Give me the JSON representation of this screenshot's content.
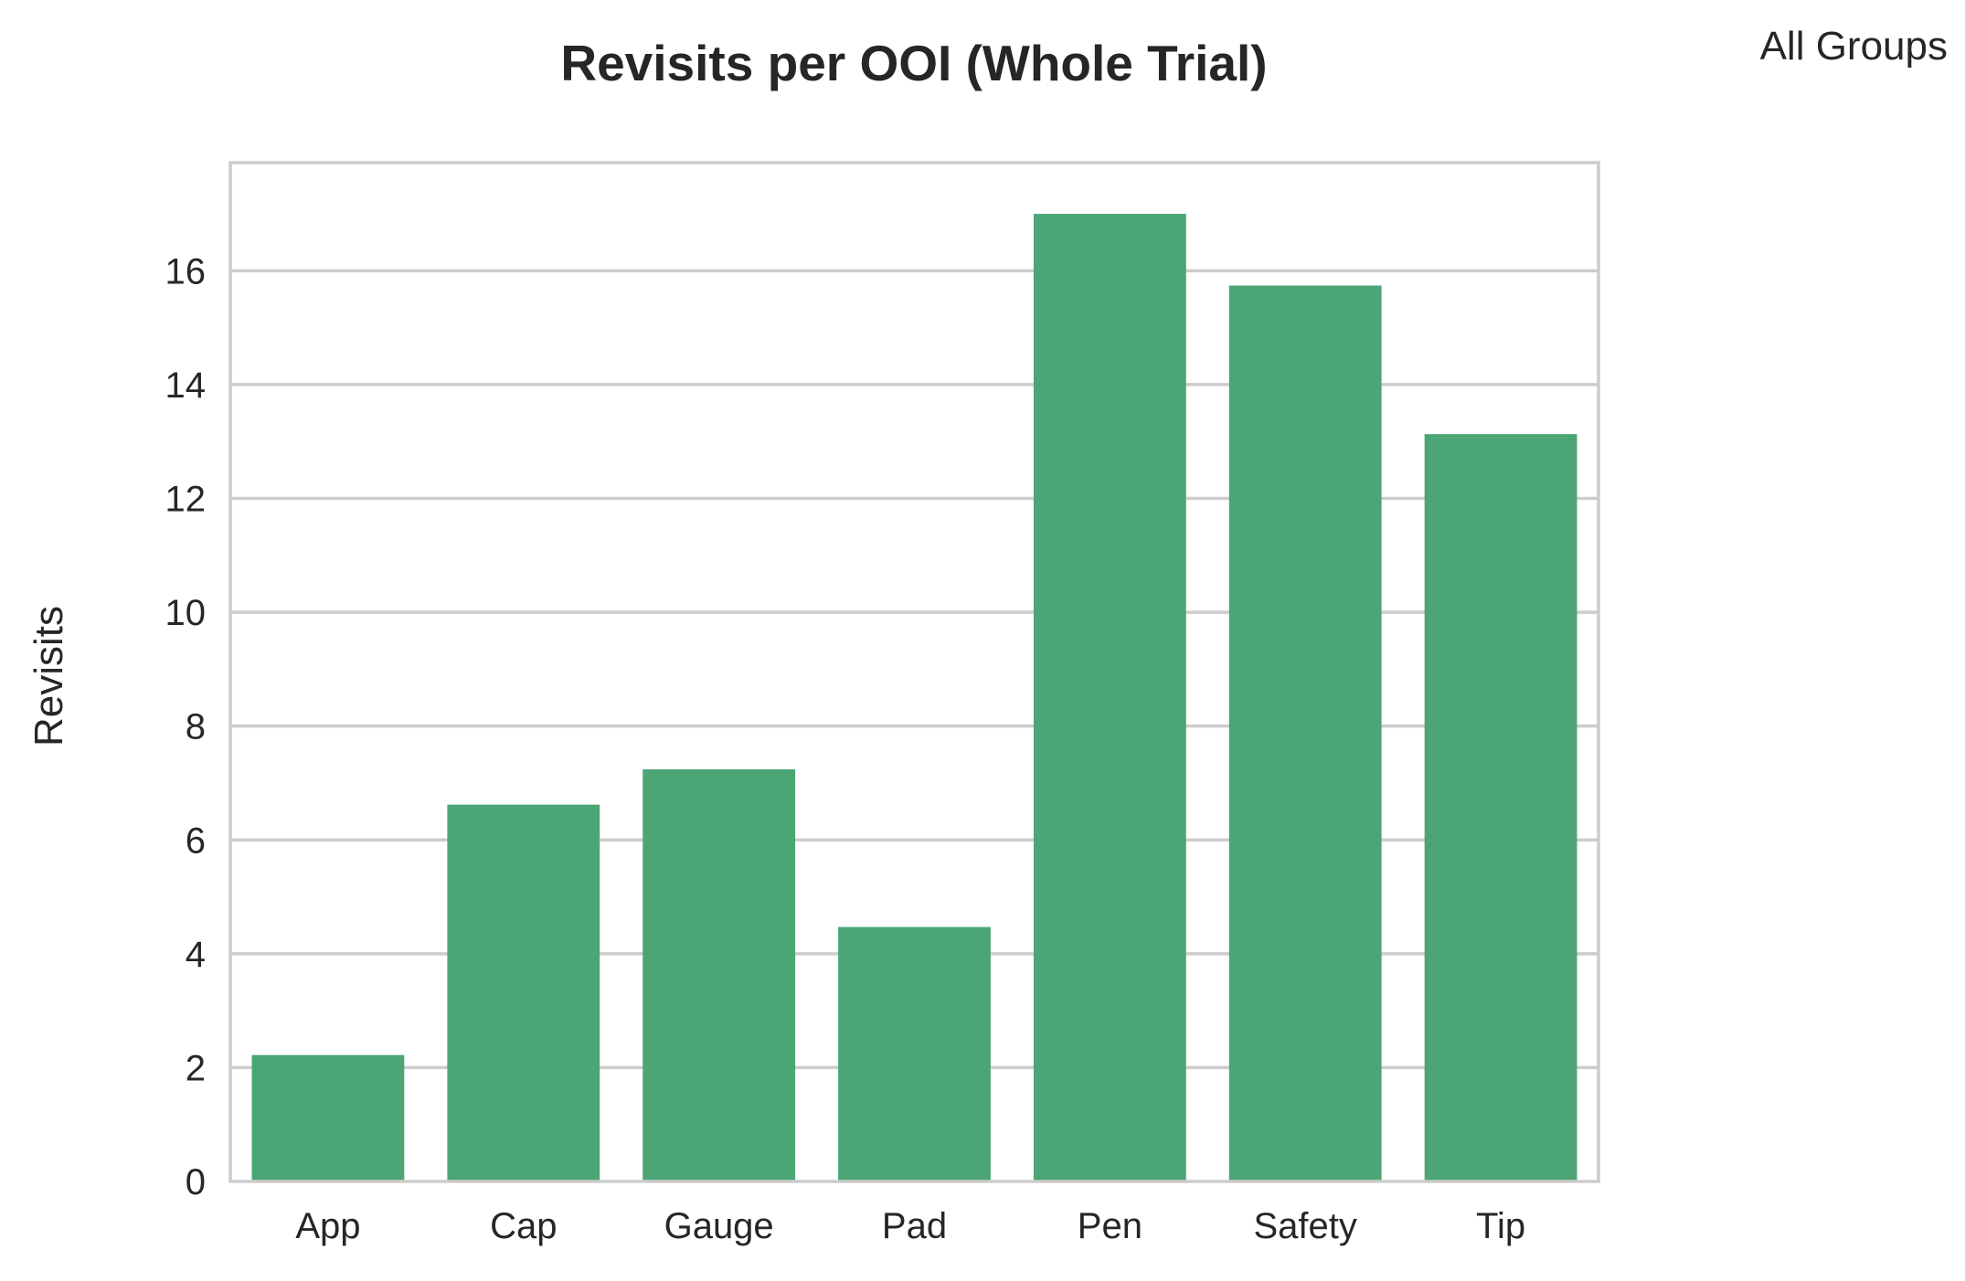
{
  "group_label": "All Groups",
  "chart_data": {
    "type": "bar",
    "title": "Revisits per OOI (Whole Trial)",
    "xlabel": "",
    "ylabel": "Revisits",
    "categories": [
      "App",
      "Cap",
      "Gauge",
      "Pad",
      "Pen",
      "Safety",
      "Tip"
    ],
    "values": [
      2.22,
      6.62,
      7.24,
      4.47,
      17.0,
      15.74,
      13.13
    ],
    "ylim": [
      0,
      17.9
    ],
    "yticks": [
      0,
      2,
      4,
      6,
      8,
      10,
      12,
      14,
      16
    ],
    "grid": true,
    "bar_color": "#4ca574",
    "grid_color": "#cccccc"
  }
}
